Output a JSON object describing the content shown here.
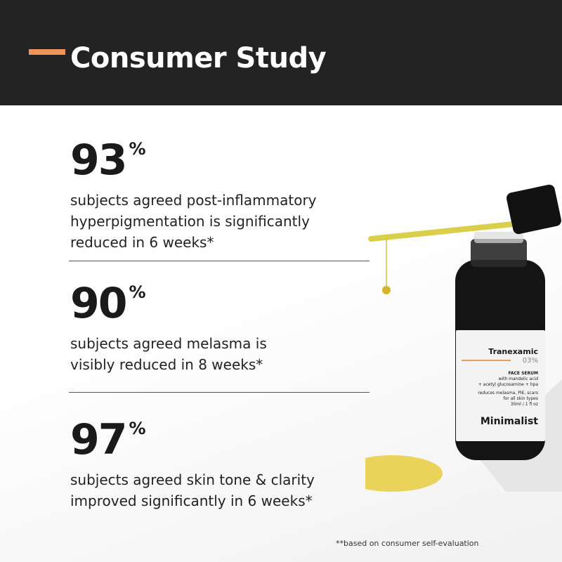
{
  "header": {
    "title": "Consumer Study",
    "accent_color": "#f0955a",
    "background": "#232323"
  },
  "stats": [
    {
      "value": "93",
      "unit": "%",
      "lines": [
        "subjects agreed post-inflammatory",
        "hyperpigmentation is significantly",
        "reduced in 6 weeks*"
      ]
    },
    {
      "value": "90",
      "unit": "%",
      "lines": [
        "subjects agreed melasma is",
        "visibly reduced in 8 weeks*"
      ]
    },
    {
      "value": "97",
      "unit": "%",
      "lines": [
        "subjects agreed skin tone & clarity",
        "improved significantly in 6 weeks*"
      ]
    }
  ],
  "footnote": "**based on consumer self-evaluation",
  "product": {
    "name": "Tranexamic",
    "strength": "03%",
    "type": "FACE SERUM",
    "ingredients": [
      "with mandelic acid",
      "+ acetyl glucosamine + hpa"
    ],
    "claims": [
      "reduces melasma, PIE, scars",
      "for all skin types",
      "30ml / 1 fl oz"
    ],
    "brand": "Minimalist"
  }
}
